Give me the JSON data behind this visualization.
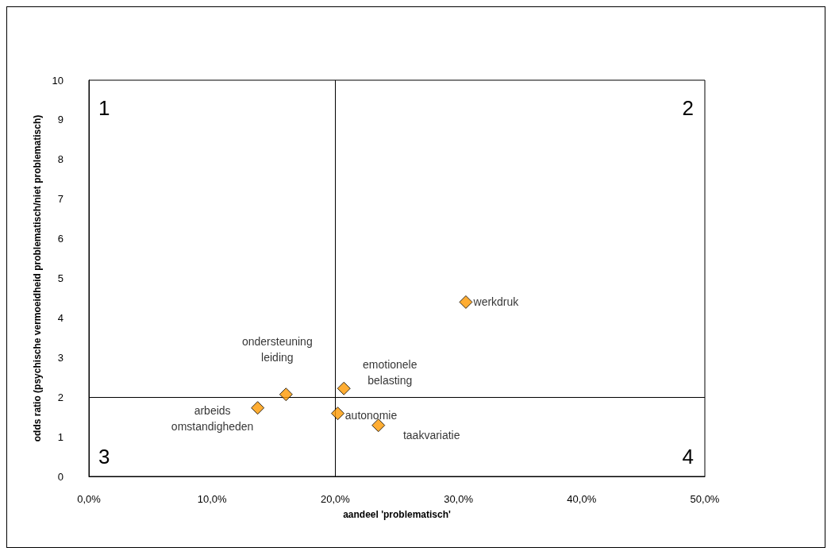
{
  "chart_data": {
    "type": "scatter",
    "xlabel": "aandeel 'problematisch'",
    "ylabel": "odds ratio (psychische vermoeidheid problematisch/niet problematisch)",
    "x": [
      30.6,
      20.7,
      16.0,
      13.7,
      20.2,
      23.5
    ],
    "values": [
      4.4,
      2.22,
      2.07,
      1.73,
      1.59,
      1.29
    ],
    "color": "#ff9900",
    "marker": "diamond",
    "grid": false,
    "xlim": [
      0,
      50
    ],
    "xticks": [
      {
        "value": 0,
        "label": "0,0%"
      },
      {
        "value": 10,
        "label": "10,0%"
      },
      {
        "value": 20,
        "label": "20,0%"
      },
      {
        "value": 30,
        "label": "30,0%"
      },
      {
        "value": 40,
        "label": "40,0%"
      },
      {
        "value": 50,
        "label": "50,0%"
      }
    ],
    "ylim": [
      0,
      10
    ],
    "yticks": [
      0,
      1,
      2,
      3,
      4,
      5,
      6,
      7,
      8,
      9,
      10
    ],
    "ref_lines": [
      {
        "axis": "x",
        "value": 20,
        "color": "#000000"
      },
      {
        "axis": "y",
        "value": 2,
        "color": "#000000"
      }
    ],
    "annotations": [
      {
        "text": "werkdruk",
        "x": 30.6,
        "y": 4.4
      },
      {
        "text": "emotionele\nbelasting",
        "x": 20.7,
        "y": 2.22
      },
      {
        "text": "ondersteuning\nleiding",
        "x": 16.0,
        "y": 2.07
      },
      {
        "text": "arbeids\nomstandigheden",
        "x": 13.7,
        "y": 1.73
      },
      {
        "text": "autonomie",
        "x": 20.2,
        "y": 1.59
      },
      {
        "text": "taakvariatie",
        "x": 23.5,
        "y": 1.29
      },
      "1",
      "2",
      "3",
      "4"
    ]
  }
}
